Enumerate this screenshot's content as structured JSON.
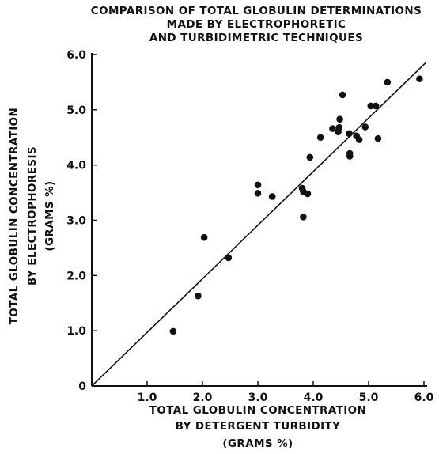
{
  "chart_data": {
    "type": "scatter",
    "title_lines": [
      "COMPARISON OF TOTAL GLOBULIN DETERMINATIONS",
      "MADE BY ELECTROPHORETIC",
      "AND TURBIDIMETRIC TECHNIQUES"
    ],
    "xlabel_lines": [
      "TOTAL GLOBULIN CONCENTRATION",
      "BY DETERGENT TURBIDITY",
      "(GRAMS %)"
    ],
    "ylabel_lines": [
      "TOTAL GLOBULIN CONCENTRATION",
      "BY ELECTROPHORESIS",
      "(GRAMS %)"
    ],
    "xlim": [
      0,
      6
    ],
    "ylim": [
      0,
      6
    ],
    "x_ticks": [
      {
        "value": 1,
        "label": "1.0"
      },
      {
        "value": 2,
        "label": "2.0"
      },
      {
        "value": 3,
        "label": "3.0"
      },
      {
        "value": 4,
        "label": "4.0"
      },
      {
        "value": 5,
        "label": "5.0"
      },
      {
        "value": 6,
        "label": "6.0"
      }
    ],
    "y_ticks": [
      {
        "value": 0,
        "label": "0"
      },
      {
        "value": 1,
        "label": "1.0"
      },
      {
        "value": 2,
        "label": "2.0"
      },
      {
        "value": 3,
        "label": "3.0"
      },
      {
        "value": 4,
        "label": "4.0"
      },
      {
        "value": 5,
        "label": "5.0"
      },
      {
        "value": 6,
        "label": "6.0"
      }
    ],
    "grid": false,
    "reference_line": {
      "type": "identity",
      "from": [
        0,
        0
      ],
      "to": [
        6.03,
        5.85
      ]
    },
    "points": [
      {
        "x": 1.47,
        "y": 0.99
      },
      {
        "x": 1.92,
        "y": 1.63
      },
      {
        "x": 2.03,
        "y": 2.69
      },
      {
        "x": 2.47,
        "y": 2.32
      },
      {
        "x": 3.0,
        "y": 3.64
      },
      {
        "x": 3.0,
        "y": 3.49
      },
      {
        "x": 3.26,
        "y": 3.43
      },
      {
        "x": 3.8,
        "y": 3.58
      },
      {
        "x": 3.82,
        "y": 3.52
      },
      {
        "x": 3.82,
        "y": 3.06
      },
      {
        "x": 3.9,
        "y": 3.48
      },
      {
        "x": 3.94,
        "y": 4.14
      },
      {
        "x": 4.13,
        "y": 4.5
      },
      {
        "x": 4.35,
        "y": 4.66
      },
      {
        "x": 4.45,
        "y": 4.6
      },
      {
        "x": 4.47,
        "y": 4.68
      },
      {
        "x": 4.48,
        "y": 4.83
      },
      {
        "x": 4.53,
        "y": 5.27
      },
      {
        "x": 4.65,
        "y": 4.57
      },
      {
        "x": 4.66,
        "y": 4.21
      },
      {
        "x": 4.66,
        "y": 4.16
      },
      {
        "x": 4.78,
        "y": 4.53
      },
      {
        "x": 4.83,
        "y": 4.46
      },
      {
        "x": 4.94,
        "y": 4.69
      },
      {
        "x": 5.04,
        "y": 5.07
      },
      {
        "x": 5.13,
        "y": 5.07
      },
      {
        "x": 5.17,
        "y": 4.48
      },
      {
        "x": 5.34,
        "y": 5.5
      },
      {
        "x": 5.92,
        "y": 5.56
      }
    ]
  }
}
